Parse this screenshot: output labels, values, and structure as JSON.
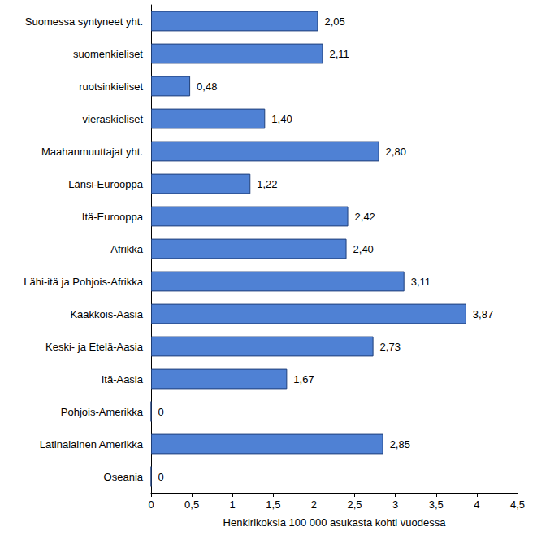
{
  "chart_data": {
    "type": "bar",
    "orientation": "horizontal",
    "x_label": "Henkirikoksia 100 000 asukasta kohti vuodessa",
    "categories": [
      "Suomessa syntyneet yht.",
      "suomenkieliset",
      "ruotsinkieliset",
      "vieraskieliset",
      "Maahanmuuttajat yht.",
      "Länsi-Eurooppa",
      "Itä-Eurooppa",
      "Afrikka",
      "Lähi-itä ja Pohjois-Afrikka",
      "Kaakkois-Aasia",
      "Keski- ja Etelä-Aasia",
      "Itä-Aasia",
      "Pohjois-Amerikka",
      "Latinalainen Amerikka",
      "Oseania"
    ],
    "values": [
      2.05,
      2.11,
      0.48,
      1.4,
      2.8,
      1.22,
      2.42,
      2.4,
      3.11,
      3.87,
      2.73,
      1.67,
      0,
      2.85,
      0
    ],
    "value_labels": [
      "2,05",
      "2,11",
      "0,48",
      "1,40",
      "2,80",
      "1,22",
      "2,42",
      "2,40",
      "3,11",
      "3,87",
      "2,73",
      "1,67",
      "0",
      "2,85",
      "0"
    ],
    "color": "#4f81d4",
    "xlim": [
      0,
      4.5
    ],
    "xticks": [
      0,
      {
        "value": 0.5,
        "label": "0,5"
      },
      1,
      {
        "value": 1.5,
        "label": "1,5"
      },
      2,
      {
        "value": 2.5,
        "label": "2,5"
      },
      3,
      {
        "value": 3.5,
        "label": "3,5"
      },
      4,
      {
        "value": 4.5,
        "label": "4,5"
      }
    ],
    "grid": false,
    "data_labels": true
  }
}
